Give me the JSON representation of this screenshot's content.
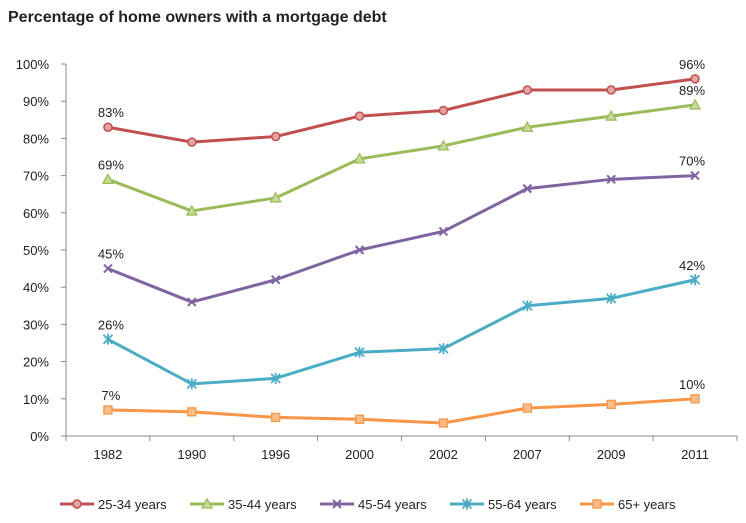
{
  "chart_data": {
    "type": "line",
    "title": "Percentage of home owners with a mortgage debt",
    "xlabel": "",
    "ylabel": "",
    "categories": [
      "1982",
      "1990",
      "1996",
      "2000",
      "2002",
      "2007",
      "2009",
      "2011"
    ],
    "ylim": [
      0,
      100
    ],
    "yticks": [
      "0%",
      "10%",
      "20%",
      "30%",
      "40%",
      "50%",
      "60%",
      "70%",
      "80%",
      "90%",
      "100%"
    ],
    "grid": false,
    "legend_position": "bottom",
    "series": [
      {
        "name": "25-34 years",
        "color": "#C0504D",
        "marker": "circle",
        "values": [
          83,
          79,
          80.5,
          86,
          87.5,
          93,
          93,
          96
        ],
        "labels": [
          {
            "index": 0,
            "text": "83%"
          },
          {
            "index": 7,
            "text": "96%"
          }
        ]
      },
      {
        "name": "35-44 years",
        "color": "#9BBB59",
        "marker": "triangle",
        "values": [
          69,
          60.5,
          64,
          74.5,
          78,
          83,
          86,
          89
        ],
        "labels": [
          {
            "index": 0,
            "text": "69%"
          },
          {
            "index": 7,
            "text": "89%"
          }
        ]
      },
      {
        "name": "45-54 years",
        "color": "#8064A2",
        "marker": "x",
        "values": [
          45,
          36,
          42,
          50,
          55,
          66.5,
          69,
          70
        ],
        "labels": [
          {
            "index": 0,
            "text": "45%"
          },
          {
            "index": 7,
            "text": "70%"
          }
        ]
      },
      {
        "name": "55-64 years",
        "color": "#4BACC6",
        "marker": "star",
        "values": [
          26,
          14,
          15.5,
          22.5,
          23.5,
          35,
          37,
          42
        ],
        "labels": [
          {
            "index": 0,
            "text": "26%"
          },
          {
            "index": 7,
            "text": "42%"
          }
        ]
      },
      {
        "name": "65+ years",
        "color": "#F79646",
        "marker": "square",
        "values": [
          7,
          6.5,
          5,
          4.5,
          3.5,
          7.5,
          8.5,
          10
        ],
        "labels": [
          {
            "index": 0,
            "text": "7%"
          },
          {
            "index": 7,
            "text": "10%"
          }
        ]
      }
    ]
  }
}
